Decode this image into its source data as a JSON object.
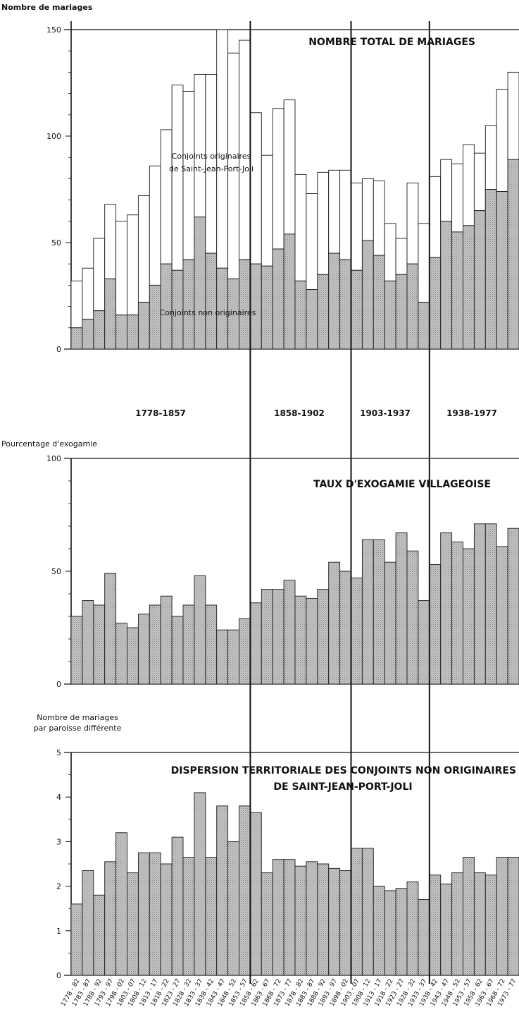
{
  "chart_data": [
    {
      "type": "bar",
      "title": "NOMBRE TOTAL DE MARIAGES",
      "ylabel": "Nombre de mariages",
      "ylim": [
        0,
        150
      ],
      "yticks": [
        0,
        50,
        100,
        150
      ],
      "periods": [
        "1778-1857",
        "1858-1902",
        "1903-1937",
        "1938-1977"
      ],
      "annotations": [
        "Conjoints originaires",
        "de Saint-Jean-Port-Joli",
        "Conjoints non originaires"
      ],
      "series": [
        {
          "name": "Conjoints non originaires",
          "values": [
            10,
            14,
            18,
            33,
            16,
            16,
            22,
            30,
            40,
            37,
            42,
            62,
            45,
            38,
            33,
            42,
            40,
            39,
            47,
            54,
            32,
            28,
            35,
            45,
            42,
            37,
            51,
            44,
            32,
            35,
            40,
            22,
            43,
            60,
            55,
            58,
            65,
            75,
            74,
            89
          ]
        },
        {
          "name": "Conjoints originaires de Saint-Jean-Port-Joli",
          "values": [
            22,
            24,
            34,
            35,
            44,
            47,
            50,
            56,
            63,
            87,
            79,
            67,
            84,
            117,
            106,
            103,
            71,
            52,
            66,
            63,
            50,
            45,
            48,
            39,
            42,
            41,
            29,
            35,
            27,
            17,
            38,
            37,
            38,
            29,
            32,
            38,
            27,
            30,
            48,
            41
          ]
        }
      ]
    },
    {
      "type": "bar",
      "title": "TAUX D'EXOGAMIE VILLAGEOISE",
      "ylabel": "Pourcentage d'exogamie",
      "ylim": [
        0,
        100
      ],
      "yticks": [
        0,
        50,
        100
      ],
      "series": [
        {
          "name": "Taux d'exogamie",
          "values": [
            30,
            37,
            35,
            49,
            27,
            25,
            31,
            35,
            39,
            30,
            35,
            48,
            35,
            24,
            24,
            29,
            36,
            42,
            42,
            46,
            39,
            38,
            42,
            54,
            50,
            47,
            64,
            64,
            54,
            67,
            59,
            37,
            53,
            67,
            63,
            60,
            71,
            71,
            61,
            69
          ]
        }
      ]
    },
    {
      "type": "bar",
      "title_lines": [
        "DISPERSION TERRITORIALE DES CONJOINTS NON ORIGINAIRES",
        "DE SAINT-JEAN-PORT-JOLI"
      ],
      "ylabel_lines": [
        "Nombre de mariages",
        "par paroisse différente"
      ],
      "ylim": [
        0,
        5
      ],
      "yticks": [
        0,
        1,
        2,
        3,
        4,
        5
      ],
      "series": [
        {
          "name": "Dispersion",
          "values": [
            1.6,
            2.35,
            1.8,
            2.55,
            3.2,
            2.3,
            2.75,
            2.75,
            2.5,
            3.1,
            2.65,
            4.1,
            2.65,
            3.8,
            3.0,
            3.8,
            3.65,
            2.3,
            2.6,
            2.6,
            2.45,
            2.55,
            2.5,
            2.4,
            2.35,
            2.85,
            2.85,
            2.0,
            1.9,
            1.95,
            2.1,
            1.7,
            2.25,
            2.05,
            2.3,
            2.65,
            2.3,
            2.25,
            2.65,
            2.65
          ]
        }
      ]
    }
  ],
  "categories": [
    "1778 - 82",
    "1783 - 87",
    "1788 - 92",
    "1793 - 97",
    "1798 - 02",
    "1803 - 07",
    "1808 - 12",
    "1813 - 17",
    "1818 - 22",
    "1823 - 27",
    "1828 - 32",
    "1833 - 37",
    "1838 - 42",
    "1843 - 47",
    "1848 - 52",
    "1853 - 57",
    "1858 - 62",
    "1863 - 67",
    "1868 - 72",
    "1873 - 77",
    "1878 - 82",
    "1883 - 87",
    "1888 - 92",
    "1893 - 97",
    "1898 - 02",
    "1903 - 07",
    "1908 - 12",
    "1913 - 17",
    "1918 - 22",
    "1923 - 27",
    "1928 - 32",
    "1933 - 37",
    "1938 - 42",
    "1943 - 47",
    "1948 - 52",
    "1953 - 57",
    "1958 - 62",
    "1963 - 67",
    "1968 - 72",
    "1973 - 77"
  ],
  "colors": {
    "bar_fill": "#bdbdbd",
    "bar_stroke": "#1a1a1a",
    "axis": "#111111",
    "upper_bar_fill": "#ffffff"
  }
}
